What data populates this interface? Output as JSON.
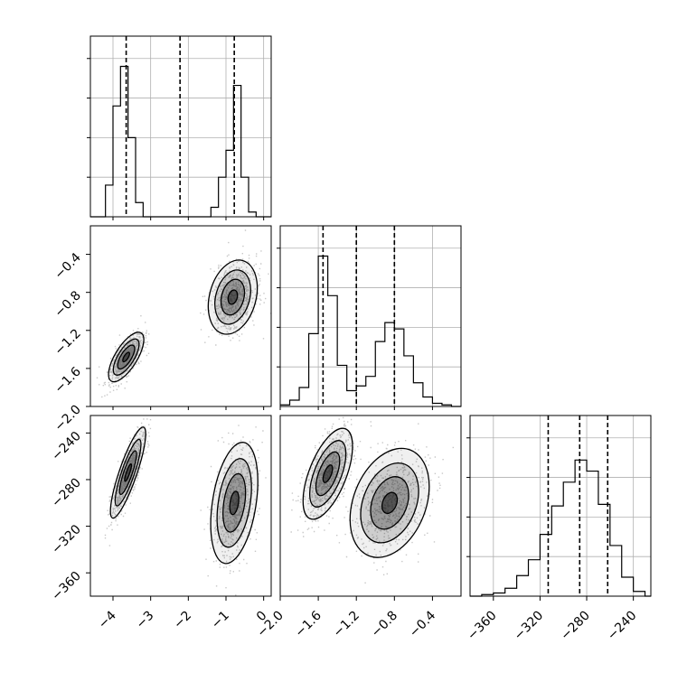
{
  "chart_data": {
    "type": "corner",
    "title": "",
    "parameters": [
      {
        "label": "",
        "range": [
          -4.6,
          0.2
        ],
        "ticks": [
          -4,
          -3,
          -2,
          -1,
          0
        ],
        "tick_labels": [
          "−4",
          "−3",
          "−2",
          "−1",
          "0"
        ]
      },
      {
        "label": "",
        "range": [
          -2.0,
          -0.1
        ],
        "ticks": [
          -2.0,
          -1.6,
          -1.2,
          -0.8,
          -0.4
        ],
        "tick_labels": [
          "−2.0",
          "−1.6",
          "−1.2",
          "−0.8",
          "−0.4"
        ]
      },
      {
        "label": "",
        "range": [
          -380,
          -225
        ],
        "ticks": [
          -360,
          -320,
          -280,
          -240
        ],
        "tick_labels": [
          "−360",
          "−320",
          "−280",
          "−240"
        ]
      }
    ],
    "histograms": [
      {
        "param": 0,
        "bin_edges": [
          -4.6,
          -4.4,
          -4.2,
          -4.0,
          -3.8,
          -3.6,
          -3.4,
          -3.2,
          -3.0,
          -2.8,
          -2.6,
          -2.4,
          -2.2,
          -2.0,
          -1.8,
          -1.6,
          -1.4,
          -1.2,
          -1.0,
          -0.8,
          -0.6,
          -0.4,
          -0.2,
          0.0,
          0.2
        ],
        "counts": [
          0,
          0,
          0.2,
          0.7,
          0.95,
          0.5,
          0.09,
          0,
          0,
          0,
          0,
          0,
          0,
          0,
          0,
          0,
          0.06,
          0.25,
          0.42,
          0.83,
          0.25,
          0.03,
          0,
          0
        ],
        "quantiles": [
          -3.65,
          -2.22,
          -0.78
        ]
      },
      {
        "param": 1,
        "bin_edges": [
          -2.0,
          -1.9,
          -1.8,
          -1.7,
          -1.6,
          -1.5,
          -1.4,
          -1.3,
          -1.2,
          -1.1,
          -1.0,
          -0.9,
          -0.8,
          -0.7,
          -0.6,
          -0.5,
          -0.4,
          -0.3,
          -0.2,
          -0.1
        ],
        "counts": [
          0.01,
          0.04,
          0.12,
          0.46,
          0.95,
          0.7,
          0.26,
          0.1,
          0.13,
          0.19,
          0.41,
          0.53,
          0.49,
          0.32,
          0.15,
          0.06,
          0.02,
          0.01,
          0
        ],
        "quantiles": [
          -1.55,
          -1.2,
          -0.8
        ]
      },
      {
        "param": 2,
        "bin_edges": [
          -380,
          -370,
          -360,
          -350,
          -340,
          -330,
          -320,
          -310,
          -300,
          -290,
          -280,
          -270,
          -260,
          -250,
          -240,
          -230,
          -225
        ],
        "counts": [
          0.0,
          0.01,
          0.02,
          0.05,
          0.13,
          0.23,
          0.39,
          0.57,
          0.72,
          0.86,
          0.79,
          0.58,
          0.32,
          0.12,
          0.03,
          0.0
        ],
        "quantiles": [
          -313,
          -286,
          -262
        ]
      }
    ],
    "contour_panels": [
      {
        "x_param": 0,
        "y_param": 1,
        "clusters": [
          {
            "mean": [
              -3.65,
              -1.48
            ],
            "sd": [
              0.18,
              0.1
            ],
            "rho": 0.7,
            "weight": 0.55
          },
          {
            "mean": [
              -0.82,
              -0.85
            ],
            "sd": [
              0.25,
              0.15
            ],
            "rho": 0.25,
            "weight": 0.45
          }
        ]
      },
      {
        "x_param": 0,
        "y_param": 2,
        "clusters": [
          {
            "mean": [
              -3.6,
              -274
            ],
            "sd": [
              0.18,
              15
            ],
            "rho": 0.85,
            "weight": 0.55
          },
          {
            "mean": [
              -0.78,
              -300
            ],
            "sd": [
              0.24,
              20
            ],
            "rho": 0.35,
            "weight": 0.45
          }
        ]
      },
      {
        "x_param": 1,
        "y_param": 2,
        "clusters": [
          {
            "mean": [
              -1.5,
              -275
            ],
            "sd": [
              0.1,
              15
            ],
            "rho": 0.6,
            "weight": 0.55
          },
          {
            "mean": [
              -0.85,
              -300
            ],
            "sd": [
              0.16,
              18
            ],
            "rho": 0.3,
            "weight": 0.45
          }
        ]
      }
    ],
    "grid": true,
    "legend": false
  }
}
